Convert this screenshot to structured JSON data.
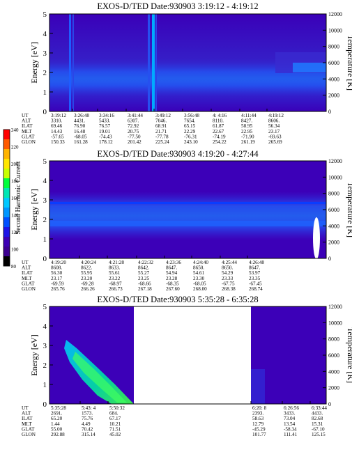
{
  "colorbar": {
    "label": "Second Harmonic Current",
    "ticks": [
      "240",
      "220",
      "200",
      "180",
      "160",
      "140",
      "120",
      "100",
      "80"
    ],
    "colors": [
      "#ff0000",
      "#ff5a00",
      "#ffb400",
      "#ffe600",
      "#c8ff00",
      "#00ff3c",
      "#00e6b4",
      "#00c8ff",
      "#0096ff",
      "#0050ff",
      "#1e14e6",
      "#3c00b4",
      "#3c0090",
      "#000000"
    ]
  },
  "panels": [
    {
      "title": "EXOS-D/TED   Date:930903  3:19:12 - 4:19:12",
      "ylabel_left": "Energy [eV]",
      "ylabel_right": "Temperature [K]",
      "y_ticks": [
        "0",
        "1",
        "2",
        "3",
        "4",
        "5"
      ],
      "t_ticks": [
        "0",
        "2000",
        "4000",
        "6000",
        "8000",
        "10000",
        "12000"
      ],
      "row_labels": [
        "UT",
        "ALT",
        "ILAT",
        "MLT",
        "GLAT",
        "GLON"
      ],
      "columns": [
        [
          "3:19:12",
          "3310.",
          "69.46",
          "14.43",
          "-57.65",
          "150.33"
        ],
        [
          "3:26:48",
          "4431.",
          "76.90",
          "16.48",
          "-68.05",
          "161.28"
        ],
        [
          "3:34:16",
          "5433.",
          "76.57",
          "19.01",
          "-74.43",
          "178.12"
        ],
        [
          "3:41:44",
          "6307.",
          "72.92",
          "20.75",
          "-77.50",
          "201.42"
        ],
        [
          "3:49:12",
          "7046.",
          "68.91",
          "21.71",
          "-77.78",
          "225.24"
        ],
        [
          "3:56:48",
          "7654.",
          "65.15",
          "22.29",
          "-76.31",
          "243.10"
        ],
        [
          "4: 4:16",
          "8110.",
          "61.87",
          "22.67",
          "-74.19",
          "254.22"
        ],
        [
          "4:11:44",
          "8427.",
          "58.95",
          "22.95",
          "-71.90",
          "261.19"
        ],
        [
          "4:19:12",
          "8606.",
          "56.34",
          "23.17",
          "-69.63",
          "265.69"
        ]
      ]
    },
    {
      "title": "EXOS-D/TED   Date:930903  4:19:20 - 4:27:44",
      "ylabel_left": "Energy [eV]",
      "ylabel_right": "Temperature [K]",
      "y_ticks": [
        "0",
        "1",
        "2",
        "3",
        "4",
        "5"
      ],
      "t_ticks": [
        "0",
        "2000",
        "4000",
        "6000",
        "8000",
        "10000",
        "12000"
      ],
      "row_labels": [
        "UT",
        "ALT",
        "ILAT",
        "MLT",
        "GLAT",
        "GLON"
      ],
      "columns": [
        [
          "4:19:20",
          "8608.",
          "56.30",
          "23.17",
          "-69.59",
          "265.76"
        ],
        [
          "4:20:24",
          "8622.",
          "55.95",
          "23.20",
          "-69.28",
          "266.26"
        ],
        [
          "4:21:28",
          "8633.",
          "55.61",
          "23.22",
          "-68.97",
          "266.73"
        ],
        [
          "4:22:32",
          "8642.",
          "55.27",
          "23.25",
          "-68.66",
          "267.18"
        ],
        [
          "4:23:36",
          "8647.",
          "54.94",
          "23.28",
          "-68.35",
          "267.60"
        ],
        [
          "4:24:40",
          "8650.",
          "54.61",
          "23.30",
          "-68.05",
          "268.00"
        ],
        [
          "4:25:44",
          "8650.",
          "54.29",
          "23.33",
          "-67.75",
          "268.38"
        ],
        [
          "4:26:48",
          "8647.",
          "53.97",
          "23.35",
          "-67.45",
          "268.74"
        ]
      ]
    },
    {
      "title": "EXOS-D/TED   Date:930903  5:35:28 - 6:35:28",
      "ylabel_left": "Energy [eV]",
      "ylabel_right": "Temperature [K]",
      "y_ticks": [
        "0",
        "1",
        "2",
        "3",
        "4",
        "5"
      ],
      "t_ticks": [
        "0",
        "2000",
        "4000",
        "6000",
        "8000",
        "10000",
        "12000"
      ],
      "row_labels": [
        "UT",
        "ALT",
        "ILAT",
        "MLT",
        "GLAT",
        "GLON"
      ],
      "columns": [
        [
          "5:35:28",
          "2691.",
          "65.20",
          "1.44",
          "55.00",
          "292.88"
        ],
        [
          "5:43: 4",
          "1573.",
          "75.76",
          "4.49",
          "70.42",
          "315.14"
        ],
        [
          "5:50:32",
          "684.",
          "67.17",
          "10.21",
          "71.51",
          "45.02"
        ],
        [
          "6:20: 8",
          "2393.",
          "58.63",
          "12.79",
          "-45.29",
          "101.77"
        ],
        [
          "6:26:56",
          "3433.",
          "73.04",
          "13.54",
          "-58.34",
          "111.41"
        ],
        [
          "6:33:44",
          "4433.",
          "82.68",
          "15.31",
          "-67.10",
          "125.15"
        ]
      ]
    }
  ],
  "chart_data": [
    {
      "type": "heatmap",
      "title": "EXOS-D/TED   Date:930903  3:19:12 - 4:19:12",
      "xlabel": "UT",
      "ylabel": "Energy [eV]",
      "y2label": "Temperature [K]",
      "ylim": [
        0,
        5
      ],
      "y2lim": [
        0,
        12000
      ],
      "x": [
        "3:19:12",
        "3:26:48",
        "3:34:16",
        "3:41:44",
        "3:49:12",
        "3:56:48",
        "4: 4:16",
        "4:11:44",
        "4:19:12"
      ],
      "features": [
        {
          "kind": "band",
          "x_start": "3:19:12",
          "x_end": "4:19:12",
          "energy_low": 1.5,
          "energy_high": 2.5,
          "level": 120
        },
        {
          "kind": "vertical_stripe",
          "x": "3:26:10",
          "energy_low": 0,
          "energy_high": 5,
          "level": 140
        },
        {
          "kind": "vertical_stripe",
          "x": "3:41:44",
          "energy_low": 0,
          "energy_high": 5,
          "level": 160
        },
        {
          "kind": "patch",
          "x_start": "4:11:44",
          "x_end": "4:19:12",
          "energy_low": 2,
          "energy_high": 3,
          "level": 150
        }
      ],
      "colorbar_range": [
        80,
        240
      ]
    },
    {
      "type": "heatmap",
      "title": "EXOS-D/TED   Date:930903  4:19:20 - 4:27:44",
      "xlabel": "UT",
      "ylabel": "Energy [eV]",
      "y2label": "Temperature [K]",
      "ylim": [
        0,
        5
      ],
      "y2lim": [
        0,
        12000
      ],
      "x": [
        "4:19:20",
        "4:20:24",
        "4:21:28",
        "4:22:32",
        "4:23:36",
        "4:24:40",
        "4:25:44",
        "4:26:48"
      ],
      "features": [
        {
          "kind": "band",
          "x_start": "4:19:20",
          "x_end": "4:27:44",
          "energy_low": 1.8,
          "energy_high": 2.8,
          "level": 140
        },
        {
          "kind": "line",
          "x_start": "4:19:20",
          "x_end": "4:27:44",
          "energy": 2.7,
          "level": 180
        }
      ],
      "colorbar_range": [
        80,
        240
      ]
    },
    {
      "type": "heatmap",
      "title": "EXOS-D/TED   Date:930903  5:35:28 - 6:35:28",
      "xlabel": "UT",
      "ylabel": "Energy [eV]",
      "y2label": "Temperature [K]",
      "ylim": [
        0,
        5
      ],
      "y2lim": [
        0,
        12000
      ],
      "x": [
        "5:35:28",
        "5:43: 4",
        "5:50:32",
        "6:20: 8",
        "6:26:56",
        "6:33:44"
      ],
      "gap": [
        "5:52:30",
        "6:18:30"
      ],
      "features": [
        {
          "kind": "diagonal_streak",
          "x_start": "5:38:00",
          "x_end": "5:52:00",
          "energy_start": 3.0,
          "energy_end": 0.2,
          "level": 180
        }
      ],
      "colorbar_range": [
        80,
        240
      ]
    }
  ]
}
